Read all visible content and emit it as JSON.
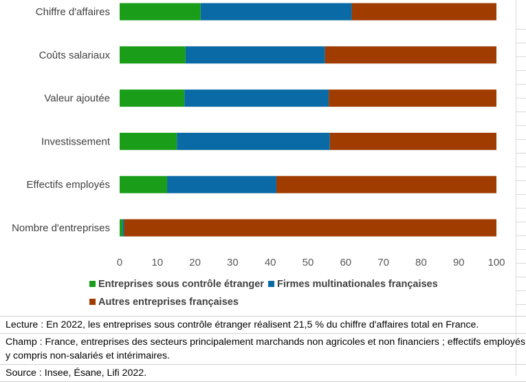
{
  "chart_data": {
    "type": "bar",
    "orientation": "horizontal",
    "stacked": true,
    "categories": [
      "Chiffre d'affaires",
      "Coûts salariaux",
      "Valeur ajoutée ",
      "Investissement",
      "Effectifs employés",
      "Nombre d'entreprises"
    ],
    "series": [
      {
        "name": "Entreprises sous contrôle étranger",
        "color": "#1a9e1a",
        "values": [
          21.5,
          17.5,
          17.2,
          15.2,
          12.6,
          0.8
        ]
      },
      {
        "name": "Firmes multinationales françaises",
        "color": "#0a6aa6",
        "values": [
          40.1,
          37.0,
          38.3,
          40.6,
          29.0,
          0.4
        ]
      },
      {
        "name": "Autres entreprises françaises",
        "color": "#a03c00",
        "values": [
          38.4,
          45.5,
          44.5,
          44.2,
          58.4,
          98.8
        ]
      }
    ],
    "xlim": [
      0,
      100
    ],
    "xticks": [
      0,
      10,
      20,
      30,
      40,
      50,
      60,
      70,
      80,
      90,
      100
    ],
    "grid": false,
    "legend_position": "bottom"
  },
  "notes": {
    "lecture": "Lecture : En 2022, les entreprises sous contrôle étranger réalisent 21,5 % du chiffre d'affaires total en France.",
    "champ": "Champ : France, entreprises des secteurs principalement marchands non agricoles et non financiers ; effectifs employés y compris non-salariés et intérimaires.",
    "source": "Source : Insee, Ésane, Lifi 2022."
  }
}
